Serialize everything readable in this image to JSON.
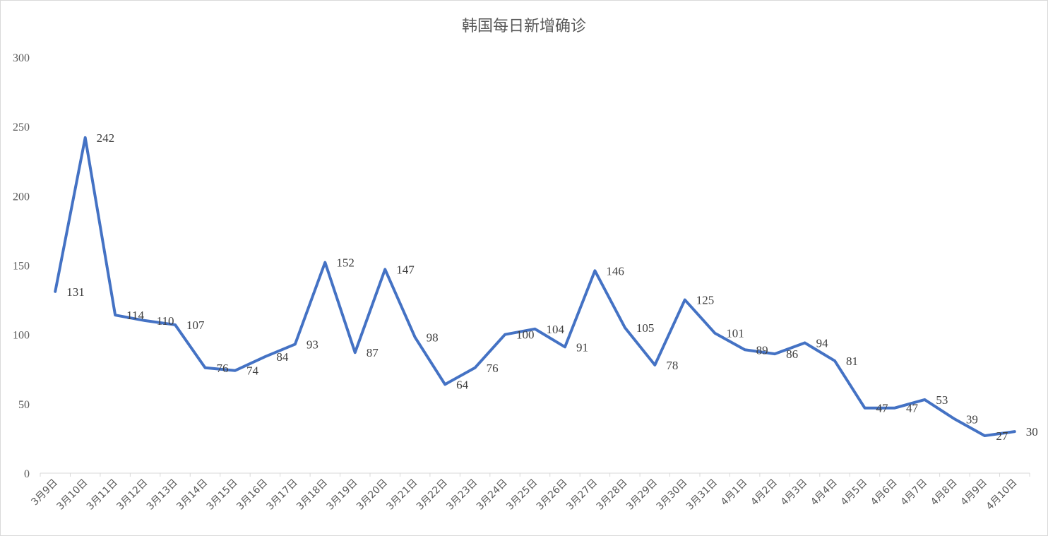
{
  "chart_data": {
    "type": "line",
    "title": "韩国每日新增确诊",
    "xlabel": "",
    "ylabel": "",
    "ylim": [
      0,
      300
    ],
    "yticks": [
      0,
      50,
      100,
      150,
      200,
      250,
      300
    ],
    "grid": false,
    "legend": "none",
    "categories": [
      "3月9日",
      "3月10日",
      "3月11日",
      "3月12日",
      "3月13日",
      "3月14日",
      "3月15日",
      "3月16日",
      "3月17日",
      "3月18日",
      "3月19日",
      "3月20日",
      "3月21日",
      "3月22日",
      "3月23日",
      "3月24日",
      "3月25日",
      "3月26日",
      "3月27日",
      "3月28日",
      "3月29日",
      "3月30日",
      "3月31日",
      "4月1日",
      "4月2日",
      "4月3日",
      "4月4日",
      "4月5日",
      "4月6日",
      "4月7日",
      "4月8日",
      "4月9日",
      "4月10日"
    ],
    "series": [
      {
        "values": [
          131,
          242,
          114,
          110,
          107,
          76,
          74,
          84,
          93,
          152,
          87,
          147,
          98,
          64,
          76,
          100,
          104,
          91,
          146,
          105,
          78,
          125,
          101,
          89,
          86,
          94,
          81,
          47,
          47,
          53,
          39,
          27,
          30
        ],
        "color": "#4472c4"
      }
    ]
  }
}
